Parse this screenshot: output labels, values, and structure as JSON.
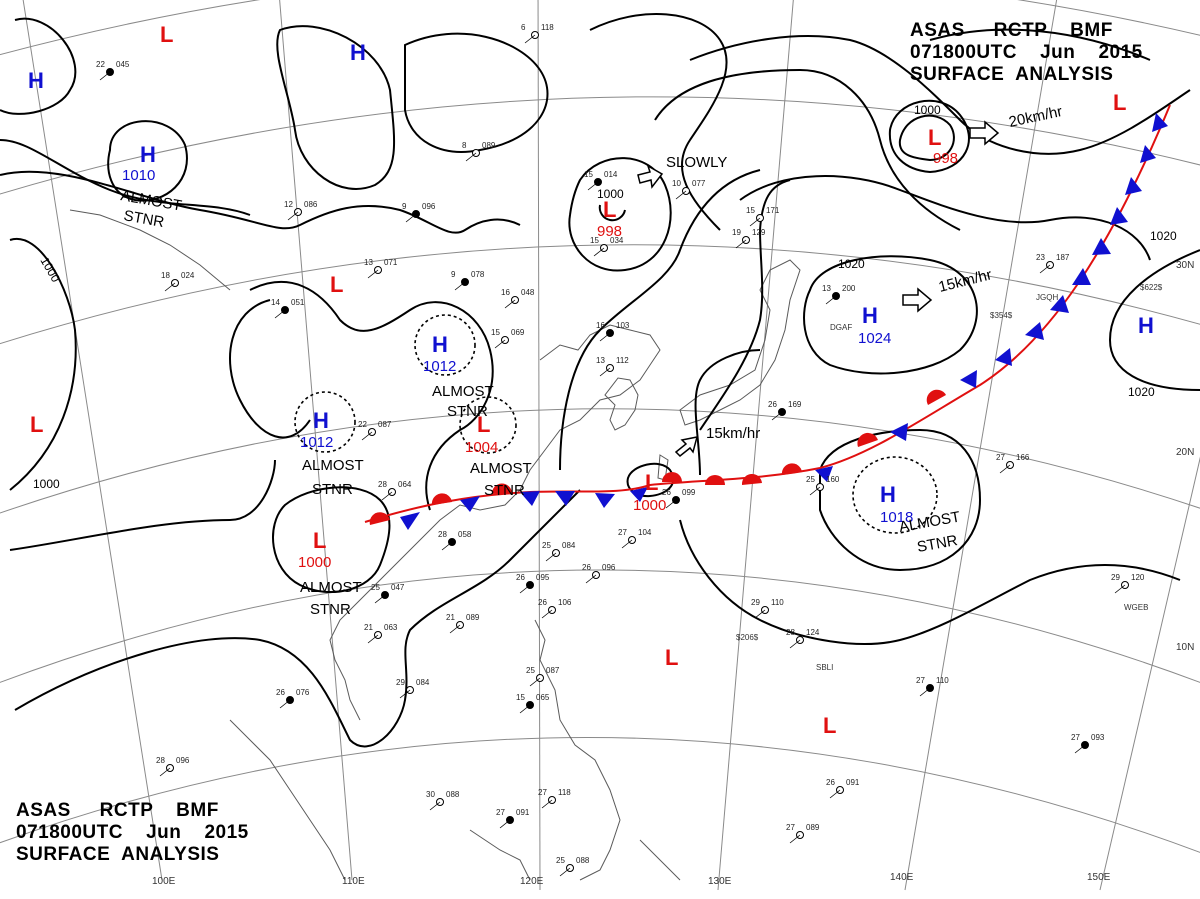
{
  "header_top": {
    "line1": "ASAS     RCTP    BMF",
    "line2": "071800UTC    Jun    2015",
    "line3": "SURFACE  ANALYSIS"
  },
  "header_bottom": {
    "line1": "ASAS     RCTP    BMF",
    "line2": "071800UTC    Jun    2015",
    "line3": "SURFACE  ANALYSIS"
  },
  "longitude_labels": [
    "100E",
    "110E",
    "120E",
    "130E",
    "140E",
    "150E"
  ],
  "latitude_labels": [
    "30N",
    "20N",
    "10N"
  ],
  "colors": {
    "high": "#1010d0",
    "low": "#e01010",
    "warm_front": "#e01010",
    "cold_front": "#1010d0",
    "isobar": "#000000",
    "grid": "#888888",
    "coast": "#555555"
  },
  "highs": [
    {
      "id": "h1",
      "letter": "H"
    },
    {
      "id": "h2",
      "letter": "H"
    },
    {
      "id": "h3",
      "letter": "H",
      "pressure": "1010"
    },
    {
      "id": "h4",
      "letter": "H",
      "pressure": "1012"
    },
    {
      "id": "h5",
      "letter": "H",
      "pressure": "1012"
    },
    {
      "id": "h6",
      "letter": "H",
      "pressure": "1024"
    },
    {
      "id": "h7",
      "letter": "H",
      "pressure": "1018"
    },
    {
      "id": "h8",
      "letter": "H"
    }
  ],
  "lows": [
    {
      "id": "l1",
      "letter": "L"
    },
    {
      "id": "l2",
      "letter": "L"
    },
    {
      "id": "l3",
      "letter": "L"
    },
    {
      "id": "l4",
      "letter": "L",
      "pressure": "998"
    },
    {
      "id": "l5",
      "letter": "L",
      "pressure": "998"
    },
    {
      "id": "l6",
      "letter": "L",
      "pressure": "1004"
    },
    {
      "id": "l7",
      "letter": "L",
      "pressure": "1000"
    },
    {
      "id": "l8",
      "letter": "L",
      "pressure": "1000"
    },
    {
      "id": "l9",
      "letter": "L"
    },
    {
      "id": "l10",
      "letter": "L"
    },
    {
      "id": "l11",
      "letter": "L"
    }
  ],
  "isobar_labels": [
    "1000",
    "1000",
    "1000",
    "1020",
    "1020",
    "1020",
    "1000"
  ],
  "annotations": {
    "almost": "ALMOST",
    "stnr": "STNR",
    "slowly": "SLOWLY",
    "motion_20": "20km/hr",
    "motion_15a": "15km/hr",
    "motion_15b": "15km/hr"
  },
  "stations": [
    "22 045",
    "18 024",
    "13 071",
    "9 078",
    "16 048",
    "15 069",
    "16 103",
    "13 112",
    "6 118",
    "15 014",
    "15 034",
    "10 077",
    "9 096",
    "12 086",
    "8 089",
    "14 051",
    "22 087",
    "28 064",
    "28 058",
    "25 084",
    "26 096",
    "26 095",
    "26 106",
    "21 089",
    "25 047",
    "21 063",
    "29 084",
    "26 076",
    "28 096",
    "30 088",
    "27 091",
    "27 118",
    "25 088",
    "26 099",
    "27 104",
    "25 087",
    "15 065",
    "28 124",
    "29 110",
    "27 110",
    "26 091",
    "27 089",
    "27 093",
    "27 166",
    "23 187",
    "13 200",
    "15 171",
    "19 129",
    "26 169",
    "25 160",
    "29 120"
  ],
  "ship_ids": [
    "DGAF",
    "JGQH",
    "WGEB",
    "SBLI",
    "$206$",
    "$354$",
    "$622$"
  ]
}
